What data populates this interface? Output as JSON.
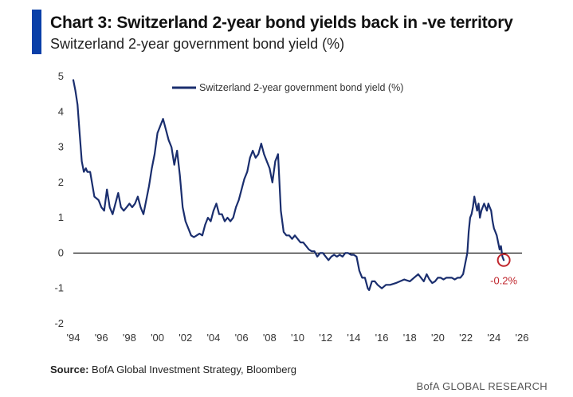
{
  "header": {
    "title": "Chart 3: Switzerland 2-year bond yields back in -ve territory",
    "subtitle": "Switzerland 2-year government bond yield (%)"
  },
  "footer": {
    "source_label": "Source:",
    "source_text": "BofA Global Investment Strategy, Bloomberg",
    "brand": "BofA GLOBAL RESEARCH"
  },
  "colors": {
    "series": "#1a2e6e",
    "accent_bar": "#0a3fa8",
    "annotation": "#c0262d",
    "zero_line": "#000000"
  },
  "chart_data": {
    "type": "line",
    "title": "",
    "xlabel": "",
    "ylabel": "",
    "xlim": [
      1994,
      2026
    ],
    "ylim": [
      -2,
      5
    ],
    "grid": false,
    "legend_position": "top-center",
    "x_tick_labels": [
      {
        "value": 1994,
        "label": "'94"
      },
      {
        "value": 1996,
        "label": "'96"
      },
      {
        "value": 1998,
        "label": "'98"
      },
      {
        "value": 2000,
        "label": "'00"
      },
      {
        "value": 2002,
        "label": "'02"
      },
      {
        "value": 2004,
        "label": "'04"
      },
      {
        "value": 2006,
        "label": "'06"
      },
      {
        "value": 2008,
        "label": "'08"
      },
      {
        "value": 2010,
        "label": "'10"
      },
      {
        "value": 2012,
        "label": "'12"
      },
      {
        "value": 2014,
        "label": "'14"
      },
      {
        "value": 2016,
        "label": "'16"
      },
      {
        "value": 2018,
        "label": "'18"
      },
      {
        "value": 2020,
        "label": "'20"
      },
      {
        "value": 2022,
        "label": "'22"
      },
      {
        "value": 2024,
        "label": "'24"
      },
      {
        "value": 2026,
        "label": "'26"
      }
    ],
    "y_tick_labels": [
      {
        "value": 5,
        "label": "5"
      },
      {
        "value": 4,
        "label": "4"
      },
      {
        "value": 3,
        "label": "3"
      },
      {
        "value": 2,
        "label": "2"
      },
      {
        "value": 1,
        "label": "1"
      },
      {
        "value": 0,
        "label": "0"
      },
      {
        "value": -1,
        "label": "-1"
      },
      {
        "value": -2,
        "label": "-2"
      }
    ],
    "series": [
      {
        "name": "Switzerland 2-year government bond yield (%)",
        "x": [
          1994.0,
          1994.15,
          1994.3,
          1994.45,
          1994.6,
          1994.75,
          1994.9,
          1995.0,
          1995.2,
          1995.5,
          1995.8,
          1996.0,
          1996.2,
          1996.4,
          1996.6,
          1996.8,
          1997.0,
          1997.2,
          1997.4,
          1997.6,
          1997.8,
          1998.0,
          1998.2,
          1998.4,
          1998.6,
          1998.8,
          1999.0,
          1999.2,
          1999.4,
          1999.6,
          1999.8,
          2000.0,
          2000.2,
          2000.4,
          2000.6,
          2000.8,
          2001.0,
          2001.2,
          2001.4,
          2001.6,
          2001.8,
          2002.0,
          2002.2,
          2002.4,
          2002.6,
          2002.8,
          2003.0,
          2003.2,
          2003.4,
          2003.6,
          2003.8,
          2004.0,
          2004.2,
          2004.4,
          2004.6,
          2004.8,
          2005.0,
          2005.2,
          2005.4,
          2005.6,
          2005.8,
          2006.0,
          2006.2,
          2006.4,
          2006.6,
          2006.8,
          2007.0,
          2007.2,
          2007.4,
          2007.6,
          2007.8,
          2008.0,
          2008.2,
          2008.4,
          2008.6,
          2008.8,
          2009.0,
          2009.2,
          2009.4,
          2009.6,
          2009.8,
          2010.0,
          2010.2,
          2010.4,
          2010.6,
          2010.8,
          2011.0,
          2011.2,
          2011.4,
          2011.6,
          2011.8,
          2012.0,
          2012.2,
          2012.4,
          2012.6,
          2012.8,
          2013.0,
          2013.2,
          2013.4,
          2013.6,
          2013.8,
          2014.0,
          2014.2,
          2014.4,
          2014.6,
          2014.8,
          2015.0,
          2015.1,
          2015.3,
          2015.5,
          2015.7,
          2016.0,
          2016.3,
          2016.6,
          2017.0,
          2017.3,
          2017.6,
          2018.0,
          2018.3,
          2018.6,
          2019.0,
          2019.2,
          2019.4,
          2019.6,
          2019.8,
          2020.0,
          2020.2,
          2020.4,
          2020.6,
          2020.8,
          2021.0,
          2021.2,
          2021.4,
          2021.6,
          2021.8,
          2022.0,
          2022.1,
          2022.2,
          2022.3,
          2022.4,
          2022.5,
          2022.6,
          2022.7,
          2022.8,
          2022.9,
          2023.0,
          2023.1,
          2023.2,
          2023.3,
          2023.4,
          2023.5,
          2023.6,
          2023.7,
          2023.8,
          2023.9,
          2024.0,
          2024.1,
          2024.2,
          2024.3,
          2024.4,
          2024.5,
          2024.6,
          2024.7
        ],
        "values": [
          4.9,
          4.6,
          4.2,
          3.4,
          2.6,
          2.3,
          2.4,
          2.3,
          2.3,
          1.6,
          1.5,
          1.3,
          1.2,
          1.8,
          1.3,
          1.1,
          1.4,
          1.7,
          1.3,
          1.2,
          1.3,
          1.4,
          1.3,
          1.4,
          1.6,
          1.3,
          1.1,
          1.5,
          1.9,
          2.4,
          2.8,
          3.4,
          3.6,
          3.8,
          3.5,
          3.2,
          3.0,
          2.5,
          2.9,
          2.2,
          1.3,
          0.9,
          0.7,
          0.5,
          0.45,
          0.5,
          0.55,
          0.5,
          0.8,
          1.0,
          0.9,
          1.2,
          1.4,
          1.1,
          1.1,
          0.9,
          1.0,
          0.9,
          1.0,
          1.3,
          1.5,
          1.8,
          2.1,
          2.3,
          2.7,
          2.9,
          2.7,
          2.8,
          3.1,
          2.8,
          2.6,
          2.4,
          2.0,
          2.6,
          2.8,
          1.2,
          0.6,
          0.5,
          0.5,
          0.4,
          0.5,
          0.4,
          0.3,
          0.3,
          0.2,
          0.1,
          0.05,
          0.05,
          -0.1,
          0.0,
          0.0,
          -0.1,
          -0.2,
          -0.1,
          -0.05,
          -0.1,
          -0.05,
          -0.1,
          0.0,
          0.0,
          -0.05,
          -0.05,
          -0.1,
          -0.5,
          -0.7,
          -0.7,
          -1.0,
          -1.05,
          -0.8,
          -0.8,
          -0.9,
          -1.0,
          -0.9,
          -0.9,
          -0.85,
          -0.8,
          -0.75,
          -0.8,
          -0.7,
          -0.6,
          -0.8,
          -0.6,
          -0.75,
          -0.85,
          -0.8,
          -0.7,
          -0.7,
          -0.75,
          -0.7,
          -0.7,
          -0.7,
          -0.75,
          -0.7,
          -0.7,
          -0.6,
          -0.2,
          0.0,
          0.6,
          1.0,
          1.1,
          1.3,
          1.6,
          1.4,
          1.2,
          1.4,
          1.0,
          1.2,
          1.3,
          1.4,
          1.3,
          1.2,
          1.4,
          1.3,
          1.2,
          0.9,
          0.7,
          0.6,
          0.5,
          0.3,
          0.1,
          0.2,
          -0.1,
          -0.2
        ]
      }
    ],
    "annotations": [
      {
        "x": 2024.7,
        "y": -0.2,
        "label": "-0.2%"
      }
    ]
  }
}
